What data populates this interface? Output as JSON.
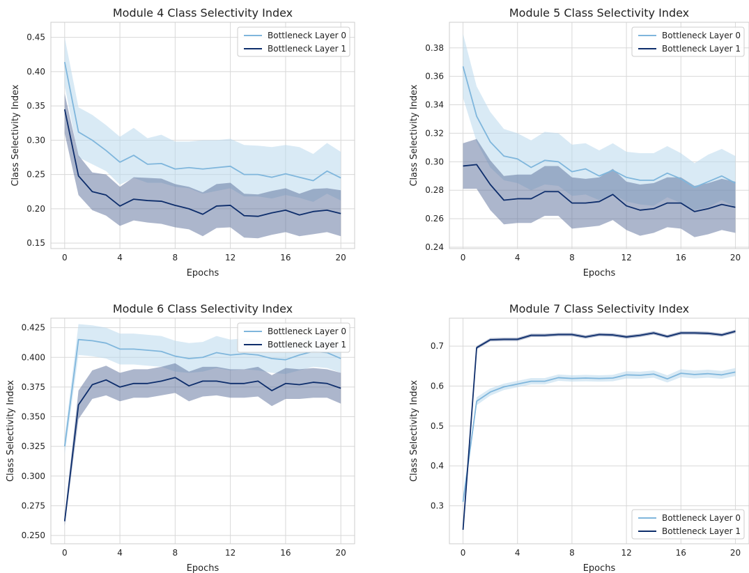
{
  "colors": {
    "layer0": "#7fb6dc",
    "layer0_band": "#b9d8ec",
    "layer1": "#0d2d6b",
    "layer1_band": "#5a6e99",
    "grid": "#d8d8d8",
    "frame": "#cccccc"
  },
  "chart_data": [
    {
      "type": "line",
      "title": "Module 4 Class Selectivity Index",
      "xlabel": "Epochs",
      "ylabel": "Class Selectivity Index",
      "xlim": [
        -1,
        21
      ],
      "ylim": [
        0.142,
        0.472
      ],
      "xticks": [
        0,
        4,
        8,
        12,
        16,
        20
      ],
      "yticks": [
        0.15,
        0.2,
        0.25,
        0.3,
        0.35,
        0.4,
        0.45
      ],
      "ytick_labels": [
        "0.15",
        "0.20",
        "0.25",
        "0.30",
        "0.35",
        "0.40",
        "0.45"
      ],
      "grid": true,
      "legend_position": "top-right",
      "x": [
        0,
        1,
        2,
        3,
        4,
        5,
        6,
        7,
        8,
        9,
        10,
        11,
        12,
        13,
        14,
        15,
        16,
        17,
        18,
        19,
        20
      ],
      "series": [
        {
          "name": "Bottleneck Layer 0",
          "values": [
            0.414,
            0.312,
            0.3,
            0.285,
            0.268,
            0.278,
            0.265,
            0.266,
            0.258,
            0.26,
            0.258,
            0.26,
            0.262,
            0.25,
            0.25,
            0.246,
            0.251,
            0.246,
            0.241,
            0.255,
            0.245
          ],
          "lower": [
            0.38,
            0.275,
            0.265,
            0.255,
            0.235,
            0.245,
            0.238,
            0.238,
            0.232,
            0.23,
            0.222,
            0.226,
            0.23,
            0.218,
            0.218,
            0.215,
            0.22,
            0.216,
            0.21,
            0.222,
            0.212
          ],
          "upper": [
            0.45,
            0.348,
            0.337,
            0.322,
            0.305,
            0.318,
            0.303,
            0.308,
            0.298,
            0.298,
            0.3,
            0.3,
            0.302,
            0.293,
            0.292,
            0.29,
            0.293,
            0.29,
            0.28,
            0.296,
            0.283
          ]
        },
        {
          "name": "Bottleneck Layer 1",
          "values": [
            0.345,
            0.248,
            0.225,
            0.22,
            0.204,
            0.214,
            0.212,
            0.211,
            0.205,
            0.2,
            0.192,
            0.204,
            0.205,
            0.19,
            0.189,
            0.194,
            0.198,
            0.191,
            0.196,
            0.198,
            0.193
          ],
          "lower": [
            0.31,
            0.22,
            0.198,
            0.19,
            0.175,
            0.183,
            0.18,
            0.178,
            0.173,
            0.17,
            0.16,
            0.172,
            0.173,
            0.158,
            0.157,
            0.162,
            0.166,
            0.16,
            0.163,
            0.166,
            0.16
          ],
          "upper": [
            0.368,
            0.278,
            0.253,
            0.25,
            0.232,
            0.246,
            0.245,
            0.244,
            0.236,
            0.232,
            0.224,
            0.236,
            0.238,
            0.222,
            0.221,
            0.226,
            0.23,
            0.222,
            0.229,
            0.23,
            0.227
          ]
        }
      ]
    },
    {
      "type": "line",
      "title": "Module 5 Class Selectivity Index",
      "xlabel": "Epochs",
      "ylabel": "Class Selectivity Index",
      "xlim": [
        -1,
        21
      ],
      "ylim": [
        0.239,
        0.398
      ],
      "xticks": [
        0,
        4,
        8,
        12,
        16,
        20
      ],
      "yticks": [
        0.24,
        0.26,
        0.28,
        0.3,
        0.32,
        0.34,
        0.36,
        0.38
      ],
      "ytick_labels": [
        "0.24",
        "0.26",
        "0.28",
        "0.30",
        "0.32",
        "0.34",
        "0.36",
        "0.38"
      ],
      "grid": true,
      "legend_position": "top-right",
      "x": [
        0,
        1,
        2,
        3,
        4,
        5,
        6,
        7,
        8,
        9,
        10,
        11,
        12,
        13,
        14,
        15,
        16,
        17,
        18,
        19,
        20
      ],
      "series": [
        {
          "name": "Bottleneck Layer 0",
          "values": [
            0.367,
            0.332,
            0.314,
            0.304,
            0.302,
            0.296,
            0.301,
            0.3,
            0.293,
            0.295,
            0.29,
            0.294,
            0.289,
            0.287,
            0.287,
            0.292,
            0.288,
            0.282,
            0.286,
            0.29,
            0.285
          ],
          "lower": [
            0.345,
            0.314,
            0.296,
            0.287,
            0.285,
            0.28,
            0.284,
            0.283,
            0.276,
            0.277,
            0.273,
            0.277,
            0.272,
            0.27,
            0.269,
            0.275,
            0.271,
            0.266,
            0.268,
            0.273,
            0.268
          ],
          "upper": [
            0.39,
            0.353,
            0.335,
            0.323,
            0.32,
            0.315,
            0.321,
            0.32,
            0.312,
            0.313,
            0.308,
            0.313,
            0.307,
            0.306,
            0.306,
            0.311,
            0.306,
            0.299,
            0.305,
            0.309,
            0.304
          ]
        },
        {
          "name": "Bottleneck Layer 1",
          "values": [
            0.297,
            0.298,
            0.284,
            0.273,
            0.274,
            0.274,
            0.279,
            0.279,
            0.271,
            0.271,
            0.272,
            0.277,
            0.269,
            0.266,
            0.267,
            0.271,
            0.271,
            0.265,
            0.267,
            0.27,
            0.268
          ],
          "lower": [
            0.281,
            0.281,
            0.266,
            0.256,
            0.257,
            0.257,
            0.262,
            0.262,
            0.253,
            0.254,
            0.255,
            0.259,
            0.252,
            0.248,
            0.25,
            0.254,
            0.253,
            0.247,
            0.249,
            0.252,
            0.25
          ],
          "upper": [
            0.313,
            0.316,
            0.301,
            0.29,
            0.291,
            0.291,
            0.297,
            0.297,
            0.289,
            0.288,
            0.289,
            0.295,
            0.286,
            0.284,
            0.285,
            0.289,
            0.289,
            0.283,
            0.285,
            0.288,
            0.286
          ]
        }
      ]
    },
    {
      "type": "line",
      "title": "Module 6 Class Selectivity Index",
      "xlabel": "Epochs",
      "ylabel": "Class Selectivity Index",
      "xlim": [
        -1,
        21
      ],
      "ylim": [
        0.243,
        0.433
      ],
      "xticks": [
        0,
        4,
        8,
        12,
        16,
        20
      ],
      "yticks": [
        0.25,
        0.275,
        0.3,
        0.325,
        0.35,
        0.375,
        0.4,
        0.425
      ],
      "ytick_labels": [
        "0.250",
        "0.275",
        "0.300",
        "0.325",
        "0.350",
        "0.375",
        "0.400",
        "0.425"
      ],
      "grid": true,
      "legend_position": "top-right",
      "x": [
        0,
        1,
        2,
        3,
        4,
        5,
        6,
        7,
        8,
        9,
        10,
        11,
        12,
        13,
        14,
        15,
        16,
        17,
        18,
        19,
        20
      ],
      "series": [
        {
          "name": "Bottleneck Layer 0",
          "values": [
            0.325,
            0.415,
            0.414,
            0.412,
            0.407,
            0.407,
            0.406,
            0.405,
            0.401,
            0.399,
            0.4,
            0.404,
            0.402,
            0.403,
            0.402,
            0.399,
            0.398,
            0.402,
            0.405,
            0.404,
            0.399
          ],
          "lower": [
            0.318,
            0.402,
            0.401,
            0.399,
            0.394,
            0.394,
            0.393,
            0.392,
            0.388,
            0.387,
            0.388,
            0.391,
            0.389,
            0.39,
            0.389,
            0.387,
            0.386,
            0.389,
            0.392,
            0.391,
            0.387
          ],
          "upper": [
            0.332,
            0.428,
            0.427,
            0.425,
            0.42,
            0.42,
            0.419,
            0.418,
            0.414,
            0.412,
            0.413,
            0.418,
            0.415,
            0.416,
            0.415,
            0.412,
            0.411,
            0.415,
            0.418,
            0.417,
            0.411
          ]
        },
        {
          "name": "Bottleneck Layer 1",
          "values": [
            0.262,
            0.36,
            0.377,
            0.381,
            0.375,
            0.378,
            0.378,
            0.38,
            0.383,
            0.376,
            0.38,
            0.38,
            0.378,
            0.378,
            0.38,
            0.372,
            0.378,
            0.377,
            0.379,
            0.378,
            0.374
          ],
          "lower": [
            0.258,
            0.348,
            0.365,
            0.368,
            0.363,
            0.366,
            0.366,
            0.368,
            0.37,
            0.363,
            0.367,
            0.368,
            0.366,
            0.366,
            0.367,
            0.359,
            0.365,
            0.365,
            0.366,
            0.366,
            0.361
          ],
          "upper": [
            0.266,
            0.372,
            0.389,
            0.393,
            0.387,
            0.39,
            0.39,
            0.392,
            0.395,
            0.388,
            0.392,
            0.392,
            0.39,
            0.39,
            0.392,
            0.385,
            0.391,
            0.39,
            0.391,
            0.39,
            0.387
          ]
        }
      ]
    },
    {
      "type": "line",
      "title": "Module 7 Class Selectivity Index",
      "xlabel": "Epochs",
      "ylabel": "Class Selectivity Index",
      "xlim": [
        -1,
        21
      ],
      "ylim": [
        0.205,
        0.77
      ],
      "xticks": [
        0,
        4,
        8,
        12,
        16,
        20
      ],
      "yticks": [
        0.3,
        0.4,
        0.5,
        0.6,
        0.7
      ],
      "ytick_labels": [
        "0.3",
        "0.4",
        "0.5",
        "0.6",
        "0.7"
      ],
      "grid": true,
      "legend_position": "bottom-right",
      "x": [
        0,
        1,
        2,
        3,
        4,
        5,
        6,
        7,
        8,
        9,
        10,
        11,
        12,
        13,
        14,
        15,
        16,
        17,
        18,
        19,
        20
      ],
      "series": [
        {
          "name": "Bottleneck Layer 0",
          "values": [
            0.31,
            0.562,
            0.585,
            0.598,
            0.605,
            0.612,
            0.612,
            0.621,
            0.619,
            0.62,
            0.619,
            0.62,
            0.628,
            0.627,
            0.63,
            0.618,
            0.632,
            0.629,
            0.631,
            0.628,
            0.635
          ],
          "lower": [
            0.302,
            0.552,
            0.576,
            0.59,
            0.597,
            0.604,
            0.604,
            0.613,
            0.611,
            0.612,
            0.611,
            0.612,
            0.619,
            0.618,
            0.621,
            0.609,
            0.622,
            0.619,
            0.621,
            0.618,
            0.625
          ],
          "upper": [
            0.318,
            0.572,
            0.594,
            0.606,
            0.613,
            0.62,
            0.62,
            0.629,
            0.627,
            0.628,
            0.627,
            0.628,
            0.637,
            0.636,
            0.639,
            0.627,
            0.642,
            0.639,
            0.641,
            0.638,
            0.645
          ]
        },
        {
          "name": "Bottleneck Layer 1",
          "values": [
            0.24,
            0.696,
            0.716,
            0.717,
            0.717,
            0.727,
            0.727,
            0.729,
            0.729,
            0.723,
            0.729,
            0.728,
            0.723,
            0.727,
            0.733,
            0.724,
            0.733,
            0.733,
            0.732,
            0.728,
            0.737
          ],
          "lower": [
            0.237,
            0.692,
            0.712,
            0.713,
            0.713,
            0.723,
            0.723,
            0.725,
            0.725,
            0.719,
            0.725,
            0.724,
            0.719,
            0.723,
            0.729,
            0.72,
            0.729,
            0.729,
            0.728,
            0.724,
            0.733
          ],
          "upper": [
            0.243,
            0.7,
            0.72,
            0.721,
            0.721,
            0.731,
            0.731,
            0.733,
            0.733,
            0.727,
            0.733,
            0.732,
            0.727,
            0.731,
            0.737,
            0.728,
            0.737,
            0.737,
            0.736,
            0.732,
            0.741
          ]
        }
      ]
    }
  ]
}
